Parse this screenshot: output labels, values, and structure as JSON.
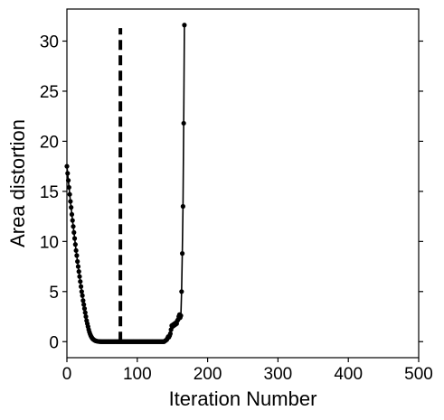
{
  "chart_data": {
    "type": "line",
    "title": "",
    "xlabel": "Iteration Number",
    "ylabel": "Area distortion",
    "xlim": [
      0,
      500
    ],
    "ylim": [
      -1.6,
      33.2
    ],
    "x_ticks": [
      0,
      100,
      200,
      300,
      400,
      500
    ],
    "y_ticks": [
      0,
      5,
      10,
      15,
      20,
      25,
      30
    ],
    "grid": false,
    "legend": "none",
    "series": [
      {
        "style": "solid line with dot markers",
        "color": "#000000",
        "points": [
          [
            0,
            17.5
          ],
          [
            1,
            16.8
          ],
          [
            2,
            16.1
          ],
          [
            3,
            15.4
          ],
          [
            4,
            14.7
          ],
          [
            5,
            14.0
          ],
          [
            6,
            13.4
          ],
          [
            7,
            12.7
          ],
          [
            8,
            12.1
          ],
          [
            9,
            11.5
          ],
          [
            10,
            10.9
          ],
          [
            11,
            10.3
          ],
          [
            12,
            9.7
          ],
          [
            13,
            9.1
          ],
          [
            14,
            8.6
          ],
          [
            15,
            8.0
          ],
          [
            16,
            7.5
          ],
          [
            17,
            7.0
          ],
          [
            18,
            6.5
          ],
          [
            19,
            6.0
          ],
          [
            20,
            5.5
          ],
          [
            21,
            5.0
          ],
          [
            22,
            4.6
          ],
          [
            23,
            4.1
          ],
          [
            24,
            3.7
          ],
          [
            25,
            3.3
          ],
          [
            26,
            2.9
          ],
          [
            27,
            2.5
          ],
          [
            28,
            2.1
          ],
          [
            29,
            1.8
          ],
          [
            30,
            1.5
          ],
          [
            31,
            1.2
          ],
          [
            32,
            0.95
          ],
          [
            33,
            0.75
          ],
          [
            34,
            0.58
          ],
          [
            35,
            0.45
          ],
          [
            36,
            0.34
          ],
          [
            37,
            0.26
          ],
          [
            38,
            0.2
          ],
          [
            39,
            0.15
          ],
          [
            40,
            0.11
          ],
          [
            41,
            0.08
          ],
          [
            42,
            0.06
          ],
          [
            43,
            0.04
          ],
          [
            44,
            0.03
          ],
          [
            45,
            0.02
          ],
          [
            46,
            0.01
          ],
          [
            47,
            0.01
          ],
          [
            48,
            0.0
          ],
          [
            49,
            0.0
          ],
          [
            50,
            0
          ],
          [
            51,
            0
          ],
          [
            52,
            0
          ],
          [
            53,
            0
          ],
          [
            54,
            0
          ],
          [
            55,
            0
          ],
          [
            56,
            0
          ],
          [
            57,
            0
          ],
          [
            58,
            0
          ],
          [
            59,
            0
          ],
          [
            60,
            0
          ],
          [
            61,
            0
          ],
          [
            62,
            0
          ],
          [
            63,
            0
          ],
          [
            64,
            0
          ],
          [
            65,
            0
          ],
          [
            66,
            0
          ],
          [
            67,
            0
          ],
          [
            68,
            0
          ],
          [
            69,
            0
          ],
          [
            70,
            0
          ],
          [
            71,
            0
          ],
          [
            72,
            0
          ],
          [
            73,
            0
          ],
          [
            74,
            0
          ],
          [
            75,
            0
          ],
          [
            76,
            0
          ],
          [
            77,
            0
          ],
          [
            78,
            0
          ],
          [
            79,
            0
          ],
          [
            80,
            0
          ],
          [
            81,
            0
          ],
          [
            82,
            0
          ],
          [
            83,
            0
          ],
          [
            84,
            0
          ],
          [
            85,
            0
          ],
          [
            86,
            0
          ],
          [
            87,
            0
          ],
          [
            88,
            0
          ],
          [
            89,
            0
          ],
          [
            90,
            0
          ],
          [
            91,
            0
          ],
          [
            92,
            0
          ],
          [
            93,
            0
          ],
          [
            94,
            0
          ],
          [
            95,
            0
          ],
          [
            96,
            0
          ],
          [
            97,
            0
          ],
          [
            98,
            0
          ],
          [
            99,
            0
          ],
          [
            100,
            0
          ],
          [
            101,
            0
          ],
          [
            102,
            0
          ],
          [
            103,
            0
          ],
          [
            104,
            0
          ],
          [
            105,
            0
          ],
          [
            106,
            0
          ],
          [
            107,
            0
          ],
          [
            108,
            0
          ],
          [
            109,
            0
          ],
          [
            110,
            0
          ],
          [
            111,
            0
          ],
          [
            112,
            0
          ],
          [
            113,
            0
          ],
          [
            114,
            0
          ],
          [
            115,
            0
          ],
          [
            116,
            0
          ],
          [
            117,
            0
          ],
          [
            118,
            0
          ],
          [
            119,
            0
          ],
          [
            120,
            0
          ],
          [
            121,
            0
          ],
          [
            122,
            0
          ],
          [
            123,
            0
          ],
          [
            124,
            0
          ],
          [
            125,
            0
          ],
          [
            126,
            0
          ],
          [
            127,
            0
          ],
          [
            128,
            0
          ],
          [
            129,
            0
          ],
          [
            130,
            0
          ],
          [
            131,
            0
          ],
          [
            132,
            0
          ],
          [
            133,
            0
          ],
          [
            134,
            0
          ],
          [
            135,
            0
          ],
          [
            136,
            0
          ],
          [
            137,
            0
          ],
          [
            138,
            0
          ],
          [
            139,
            0.05
          ],
          [
            140,
            0.1
          ],
          [
            141,
            0.15
          ],
          [
            142,
            0.2
          ],
          [
            143,
            0.35
          ],
          [
            144,
            0.5
          ],
          [
            145,
            0.45
          ],
          [
            146,
            0.6
          ],
          [
            147,
            0.8
          ],
          [
            148,
            1.2
          ],
          [
            149,
            1.6
          ],
          [
            150,
            1.5
          ],
          [
            151,
            1.7
          ],
          [
            152,
            1.6
          ],
          [
            153,
            1.8
          ],
          [
            154,
            1.7
          ],
          [
            155,
            1.9
          ],
          [
            156,
            1.8
          ],
          [
            157,
            2.1
          ],
          [
            158,
            2.2
          ],
          [
            159,
            2.5
          ],
          [
            160,
            2.7
          ],
          [
            161,
            2.4
          ],
          [
            162,
            2.6
          ],
          [
            163,
            5.0
          ],
          [
            164,
            8.8
          ],
          [
            165,
            13.5
          ],
          [
            166,
            21.8
          ],
          [
            167,
            31.6
          ]
        ]
      }
    ],
    "annotations": [
      {
        "type": "vertical-dashed-line",
        "x": 76,
        "y_from": 0,
        "y_to": 31.3,
        "color": "#000000"
      }
    ]
  }
}
